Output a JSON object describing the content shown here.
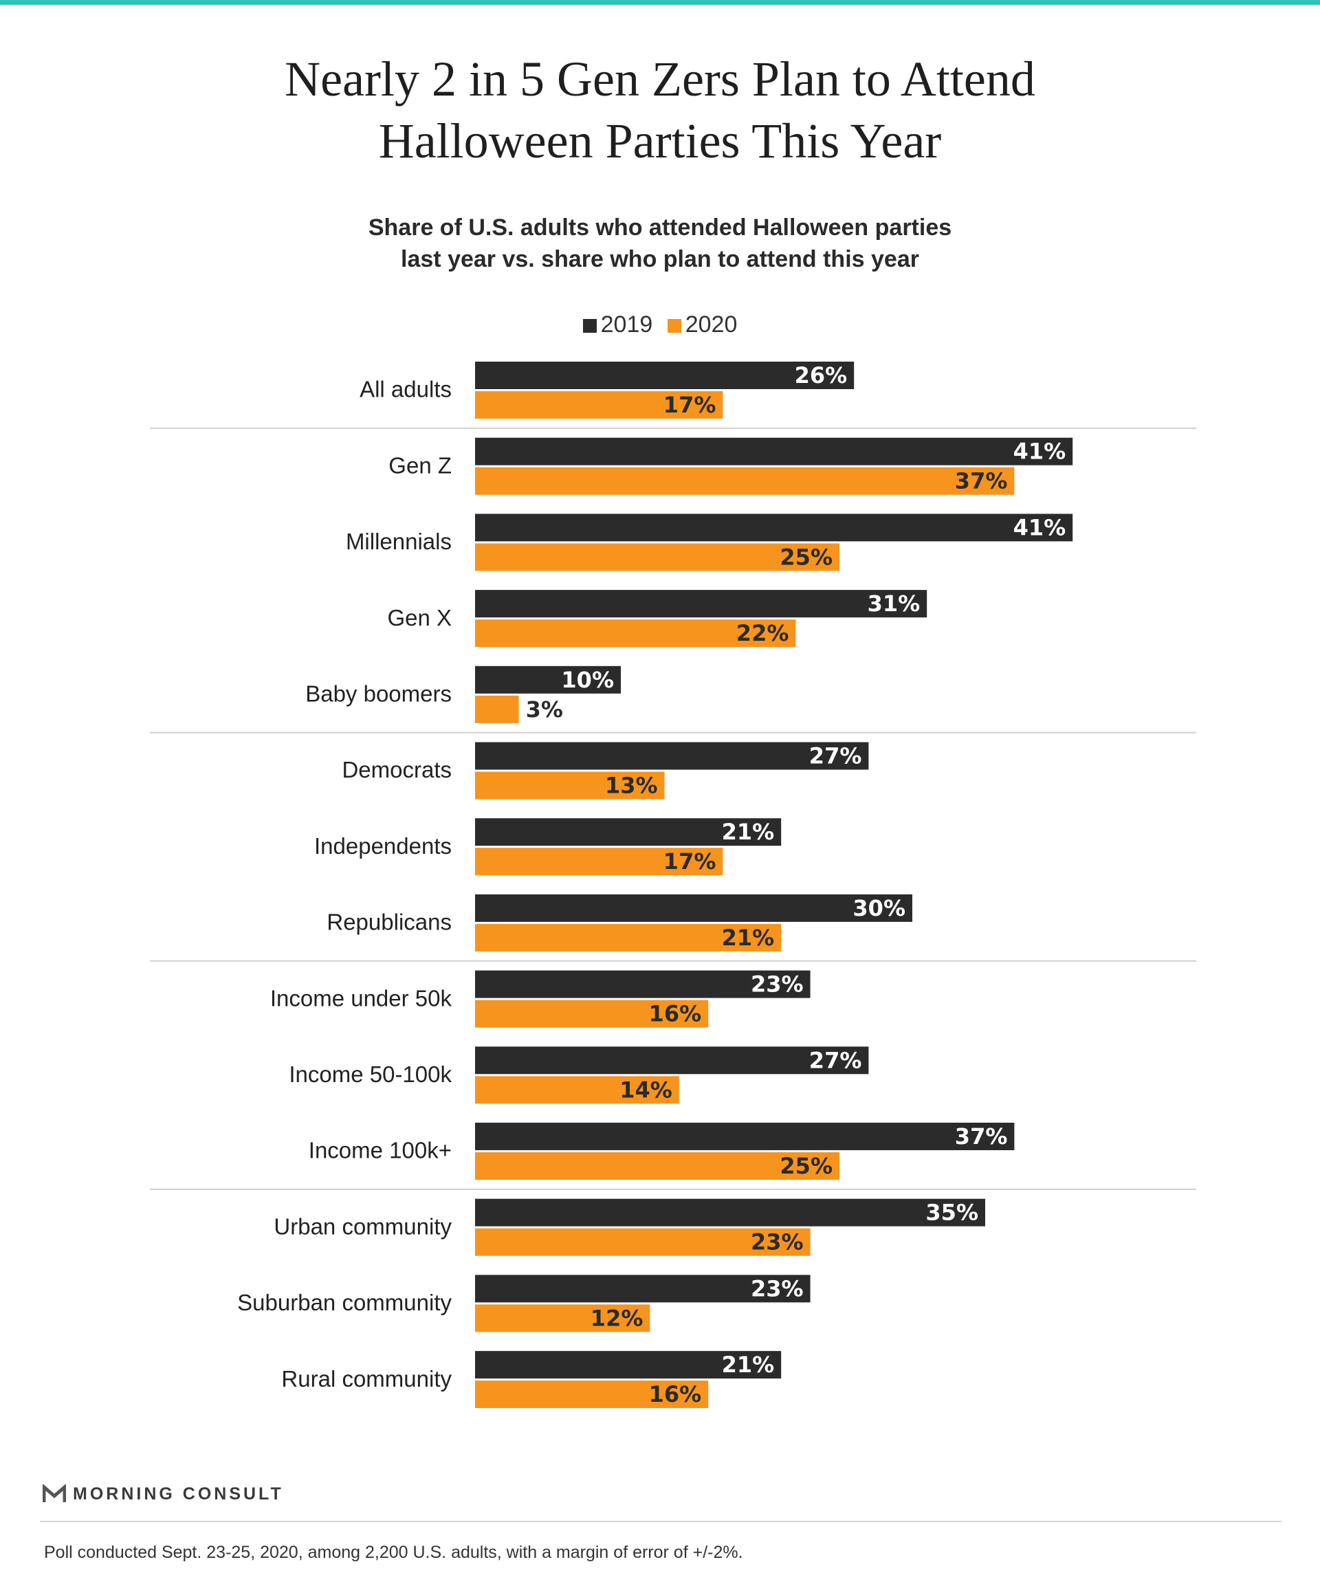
{
  "title_lines": [
    "Nearly 2 in 5 Gen Zers Plan to Attend",
    "Halloween Parties This Year"
  ],
  "subtitle_lines": [
    "Share of U.S. adults who attended Halloween parties",
    "last year vs. share who plan to attend this year"
  ],
  "legend": [
    {
      "label": "2019",
      "color": "#2b2b2b"
    },
    {
      "label": "2020",
      "color": "#f7941d"
    }
  ],
  "brand": "MORNING CONSULT",
  "footnote": "Poll conducted Sept. 23-25, 2020, among 2,200 U.S. adults, with a margin of error of +/-2%.",
  "chart_data": {
    "type": "bar",
    "orientation": "horizontal",
    "categories": [
      "All adults",
      "Gen Z",
      "Millennials",
      "Gen X",
      "Baby boomers",
      "Democrats",
      "Independents",
      "Republicans",
      "Income under 50k",
      "Income 50-100k",
      "Income 100k+",
      "Urban community",
      "Suburban community",
      "Rural community"
    ],
    "series": [
      {
        "name": "2019",
        "values": [
          26,
          41,
          41,
          31,
          10,
          27,
          21,
          30,
          23,
          27,
          37,
          35,
          23,
          21
        ]
      },
      {
        "name": "2020",
        "values": [
          17,
          37,
          25,
          22,
          3,
          13,
          17,
          21,
          16,
          14,
          25,
          23,
          12,
          16
        ]
      }
    ],
    "value_suffix": "%",
    "groups_end_after": [
      0,
      4,
      7,
      10
    ],
    "xlim": [
      0,
      41
    ],
    "grid": false
  }
}
